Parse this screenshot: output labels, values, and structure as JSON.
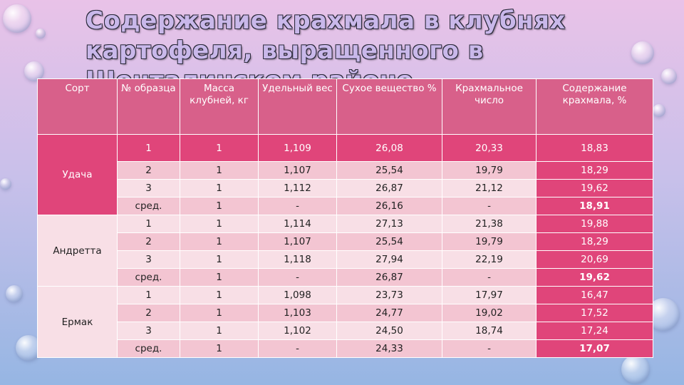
{
  "title": "Содержание крахмала в клубнях картофеля, выращенного в Шенталинском районе.",
  "table": {
    "headers": [
      "Сорт",
      "№ образца",
      "Масса клубней, кг",
      "Удельный вес",
      "Сухое вещество %",
      "Крахмальное число",
      "Содержание крахмала, %"
    ],
    "groups": [
      {
        "name": "Удача",
        "rows": [
          [
            "1",
            "1",
            "1,109",
            "26,08",
            "20,33",
            "18,83"
          ],
          [
            "2",
            "1",
            "1,107",
            "25,54",
            "19,79",
            "18,29"
          ],
          [
            "3",
            "1",
            "1,112",
            "26,87",
            "21,12",
            "19,62"
          ],
          [
            "сред.",
            "1",
            "-",
            "26,16",
            "-",
            "18,91"
          ]
        ]
      },
      {
        "name": "Андретта",
        "rows": [
          [
            "1",
            "1",
            "1,114",
            "27,13",
            "21,38",
            "19,88"
          ],
          [
            "2",
            "1",
            "1,107",
            "25,54",
            "19,79",
            "18,29"
          ],
          [
            "3",
            "1",
            "1,118",
            "27,94",
            "22,19",
            "20,69"
          ],
          [
            "сред.",
            "1",
            "-",
            "26,87",
            "-",
            "19,62"
          ]
        ]
      },
      {
        "name": "Ермак",
        "rows": [
          [
            "1",
            "1",
            "1,098",
            "23,73",
            "17,97",
            "16,47"
          ],
          [
            "2",
            "1",
            "1,103",
            "24,77",
            "19,02",
            "17,52"
          ],
          [
            "3",
            "1",
            "1,102",
            "24,50",
            "18,74",
            "17,24"
          ],
          [
            "сред.",
            "1",
            "-",
            "24,33",
            "-",
            "17,07"
          ]
        ]
      }
    ]
  }
}
